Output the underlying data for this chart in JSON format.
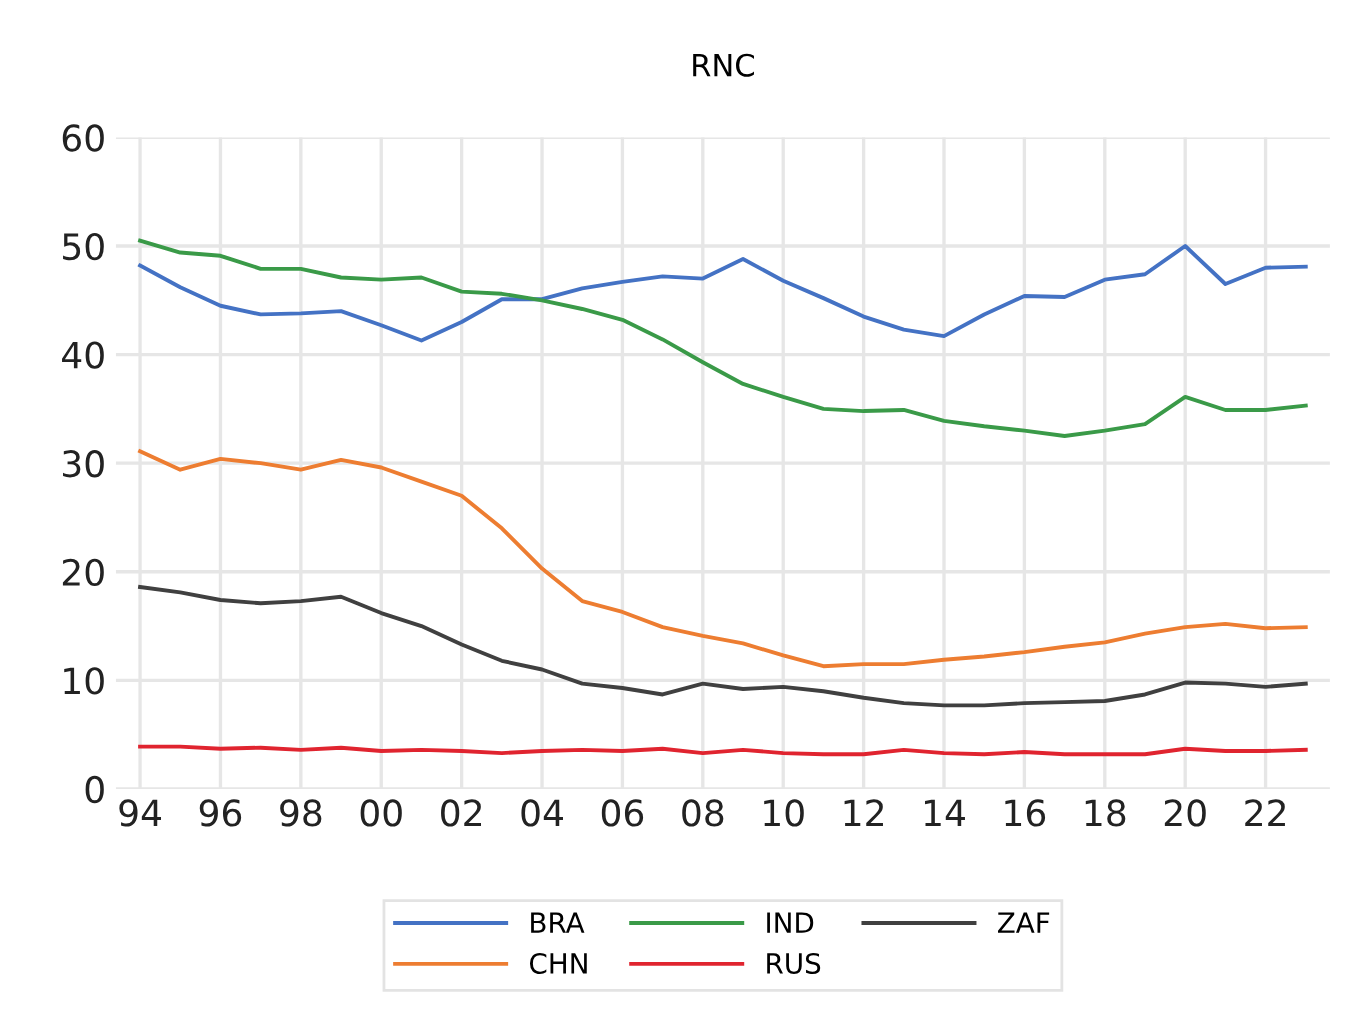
{
  "chart_data": {
    "type": "line",
    "title": "RNC",
    "categories": [
      "94",
      null,
      "96",
      null,
      "98",
      null,
      "00",
      null,
      "02",
      null,
      "04",
      null,
      "06",
      null,
      "08",
      null,
      "10",
      null,
      "12",
      null,
      "14",
      null,
      "16",
      null,
      "18",
      null,
      "20",
      null,
      "22",
      null
    ],
    "series": [
      {
        "name": "BRA",
        "color": "#4472c4",
        "values": [
          48.2,
          46.2,
          44.5,
          43.7,
          43.8,
          44.0,
          42.7,
          41.3,
          43.0,
          45.1,
          45.1,
          46.1,
          46.7,
          47.2,
          47.0,
          48.8,
          46.8,
          45.2,
          43.5,
          42.3,
          41.7,
          43.7,
          45.4,
          45.3,
          46.9,
          47.4,
          50.0,
          46.5,
          48.0,
          48.1
        ]
      },
      {
        "name": "CHN",
        "color": "#ed7d31",
        "values": [
          31.1,
          29.4,
          30.4,
          30.0,
          29.4,
          30.3,
          29.6,
          28.3,
          27.0,
          24.0,
          20.3,
          17.3,
          16.3,
          14.9,
          14.1,
          13.4,
          12.3,
          11.3,
          11.5,
          11.5,
          11.9,
          12.2,
          12.6,
          13.1,
          13.5,
          14.3,
          14.9,
          15.2,
          14.8,
          14.9
        ]
      },
      {
        "name": "IND",
        "color": "#3a9a48",
        "values": [
          50.5,
          49.4,
          49.1,
          47.9,
          47.9,
          47.1,
          46.9,
          47.1,
          45.8,
          45.6,
          45.0,
          44.2,
          43.2,
          41.4,
          39.3,
          37.3,
          36.1,
          35.0,
          34.8,
          34.9,
          33.9,
          33.4,
          33.0,
          32.5,
          33.0,
          33.6,
          36.1,
          34.9,
          34.9,
          35.3
        ]
      },
      {
        "name": "RUS",
        "color": "#e0242f",
        "values": [
          3.9,
          3.9,
          3.7,
          3.8,
          3.6,
          3.8,
          3.5,
          3.6,
          3.5,
          3.3,
          3.5,
          3.6,
          3.5,
          3.7,
          3.3,
          3.6,
          3.3,
          3.2,
          3.2,
          3.6,
          3.3,
          3.2,
          3.4,
          3.2,
          3.2,
          3.2,
          3.7,
          3.5,
          3.5,
          3.6
        ]
      },
      {
        "name": "ZAF",
        "color": "#404040",
        "values": [
          18.6,
          18.1,
          17.4,
          17.1,
          17.3,
          17.7,
          16.2,
          15.0,
          13.3,
          11.8,
          11.0,
          9.7,
          9.3,
          8.7,
          9.7,
          9.2,
          9.4,
          9.0,
          8.4,
          7.9,
          7.7,
          7.7,
          7.9,
          8.0,
          8.1,
          8.7,
          9.8,
          9.7,
          9.4,
          9.7
        ]
      }
    ],
    "ylim": [
      0,
      60
    ],
    "yticks": [
      0,
      10,
      20,
      30,
      40,
      50,
      60
    ],
    "grid": true,
    "legend": "bottom",
    "marker": "none",
    "line_style": "solid"
  }
}
